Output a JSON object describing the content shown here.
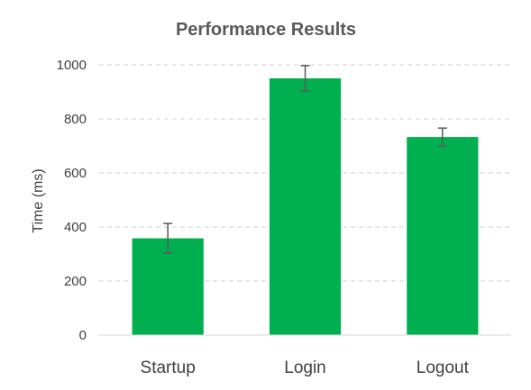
{
  "chart_data": {
    "type": "bar",
    "title": "Performance Results",
    "xlabel": "",
    "ylabel": "Time (ms)",
    "categories": [
      "Startup",
      "Login",
      "Logout"
    ],
    "values": [
      358,
      950,
      733
    ],
    "error": [
      55,
      47,
      33
    ],
    "ylim": [
      0,
      1000
    ],
    "yticks": [
      0,
      200,
      400,
      600,
      800,
      1000
    ],
    "grid": true,
    "legend": "none",
    "bar_color": "#00b050"
  }
}
